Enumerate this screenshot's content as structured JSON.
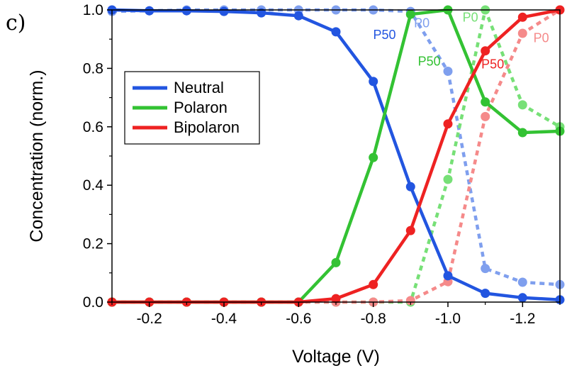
{
  "panel_label": "c)",
  "chart_data": {
    "type": "line",
    "xlabel": "Voltage (V)",
    "ylabel": "Concentration (norm.)",
    "xlim": [
      -0.1,
      -1.3
    ],
    "ylim": [
      0.0,
      1.0
    ],
    "x_ticks": [
      -0.2,
      -0.4,
      -0.6,
      -0.8,
      -1.0,
      -1.2
    ],
    "x_tick_labels": [
      "-0.2",
      "-0.4",
      "-0.6",
      "-0.8",
      "-1.0",
      "-1.2"
    ],
    "y_ticks": [
      0.0,
      0.2,
      0.4,
      0.6,
      0.8,
      1.0
    ],
    "y_tick_labels": [
      "0.0",
      "0.2",
      "0.4",
      "0.6",
      "0.8",
      "1.0"
    ],
    "grid": false,
    "legend_position": "center-left",
    "legend": [
      {
        "label": "Neutral",
        "color": "#2255e0"
      },
      {
        "label": "Polaron",
        "color": "#33c233"
      },
      {
        "label": "Bipolaron",
        "color": "#ee2222"
      }
    ],
    "x": [
      -0.1,
      -0.2,
      -0.3,
      -0.4,
      -0.5,
      -0.6,
      -0.7,
      -0.8,
      -0.9,
      -1.0,
      -1.1,
      -1.2,
      -1.3
    ],
    "series": [
      {
        "group": "Neutral",
        "sample": "P50",
        "style": "solid",
        "color": "#2255e0",
        "values": [
          1.0,
          0.997,
          0.997,
          0.995,
          0.99,
          0.98,
          0.925,
          0.755,
          0.395,
          0.09,
          0.03,
          0.015,
          0.008
        ]
      },
      {
        "group": "Neutral",
        "sample": "P0",
        "style": "dotted",
        "color": "#7f9fee",
        "values": [
          0.995,
          0.997,
          1.0,
          1.0,
          1.0,
          1.0,
          1.0,
          1.0,
          0.995,
          0.79,
          0.115,
          0.068,
          0.06
        ]
      },
      {
        "group": "Polaron",
        "sample": "P50",
        "style": "solid",
        "color": "#33c233",
        "values": [
          0.0,
          0.0,
          0.0,
          0.0,
          0.0,
          0.0,
          0.135,
          0.495,
          0.985,
          1.0,
          0.685,
          0.58,
          0.585
        ]
      },
      {
        "group": "Polaron",
        "sample": "P0",
        "style": "dotted",
        "color": "#77e077",
        "values": [
          0.0,
          0.0,
          0.0,
          0.0,
          0.0,
          0.0,
          0.0,
          0.0,
          0.0,
          0.42,
          1.0,
          0.675,
          0.6
        ]
      },
      {
        "group": "Bipolaron",
        "sample": "P50",
        "style": "solid",
        "color": "#ee2222",
        "values": [
          0.0,
          0.0,
          0.0,
          0.0,
          0.0,
          0.0,
          0.012,
          0.06,
          0.245,
          0.61,
          0.86,
          0.975,
          1.0
        ]
      },
      {
        "group": "Bipolaron",
        "sample": "P0",
        "style": "dotted",
        "color": "#f58a8a",
        "values": [
          0.0,
          0.0,
          0.0,
          0.0,
          0.0,
          0.0,
          0.0,
          0.0,
          0.005,
          0.07,
          0.635,
          0.92,
          1.0
        ]
      }
    ],
    "annotations": [
      {
        "text": "P50",
        "color": "#2255e0",
        "x": -0.83,
        "y": 0.9
      },
      {
        "text": "P0",
        "color": "#7f9fee",
        "x": -0.93,
        "y": 0.94
      },
      {
        "text": "P50",
        "color": "#33c233",
        "x": -0.95,
        "y": 0.81
      },
      {
        "text": "P0",
        "color": "#77e077",
        "x": -1.06,
        "y": 0.96
      },
      {
        "text": "P50",
        "color": "#ee2222",
        "x": -1.12,
        "y": 0.8
      },
      {
        "text": "P0",
        "color": "#f58a8a",
        "x": -1.25,
        "y": 0.89
      }
    ]
  }
}
